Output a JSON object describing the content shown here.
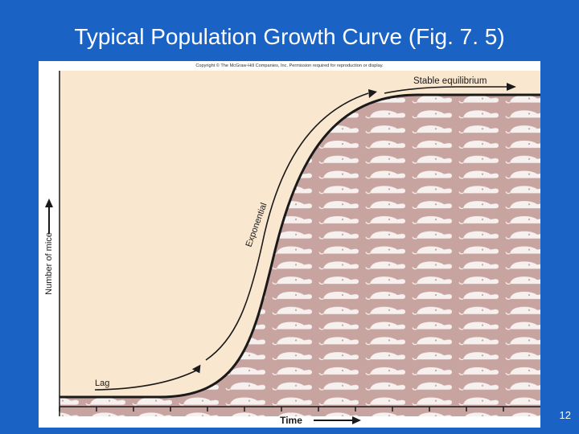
{
  "slide": {
    "title": "Typical Population Growth Curve (Fig. 7. 5)",
    "number": "12"
  },
  "figure": {
    "copyright": "Copyright © The McGraw-Hill Companies, Inc. Permission required for reproduction or display.",
    "y_axis_label": "Number of mice",
    "x_axis_label": "Time",
    "phases": {
      "lag": "Lag",
      "exponential": "Exponential",
      "stable": "Stable equilibrium"
    }
  },
  "colors": {
    "background": "#1a62c4",
    "plot_background": "#fae7cf",
    "population_fill": "#c8a4a0",
    "mouse_icon": "#f6f1ef",
    "curve": "#1a1a1a"
  },
  "icons": {
    "population": "mouse-icon",
    "axis_arrow": "arrow-icon"
  }
}
